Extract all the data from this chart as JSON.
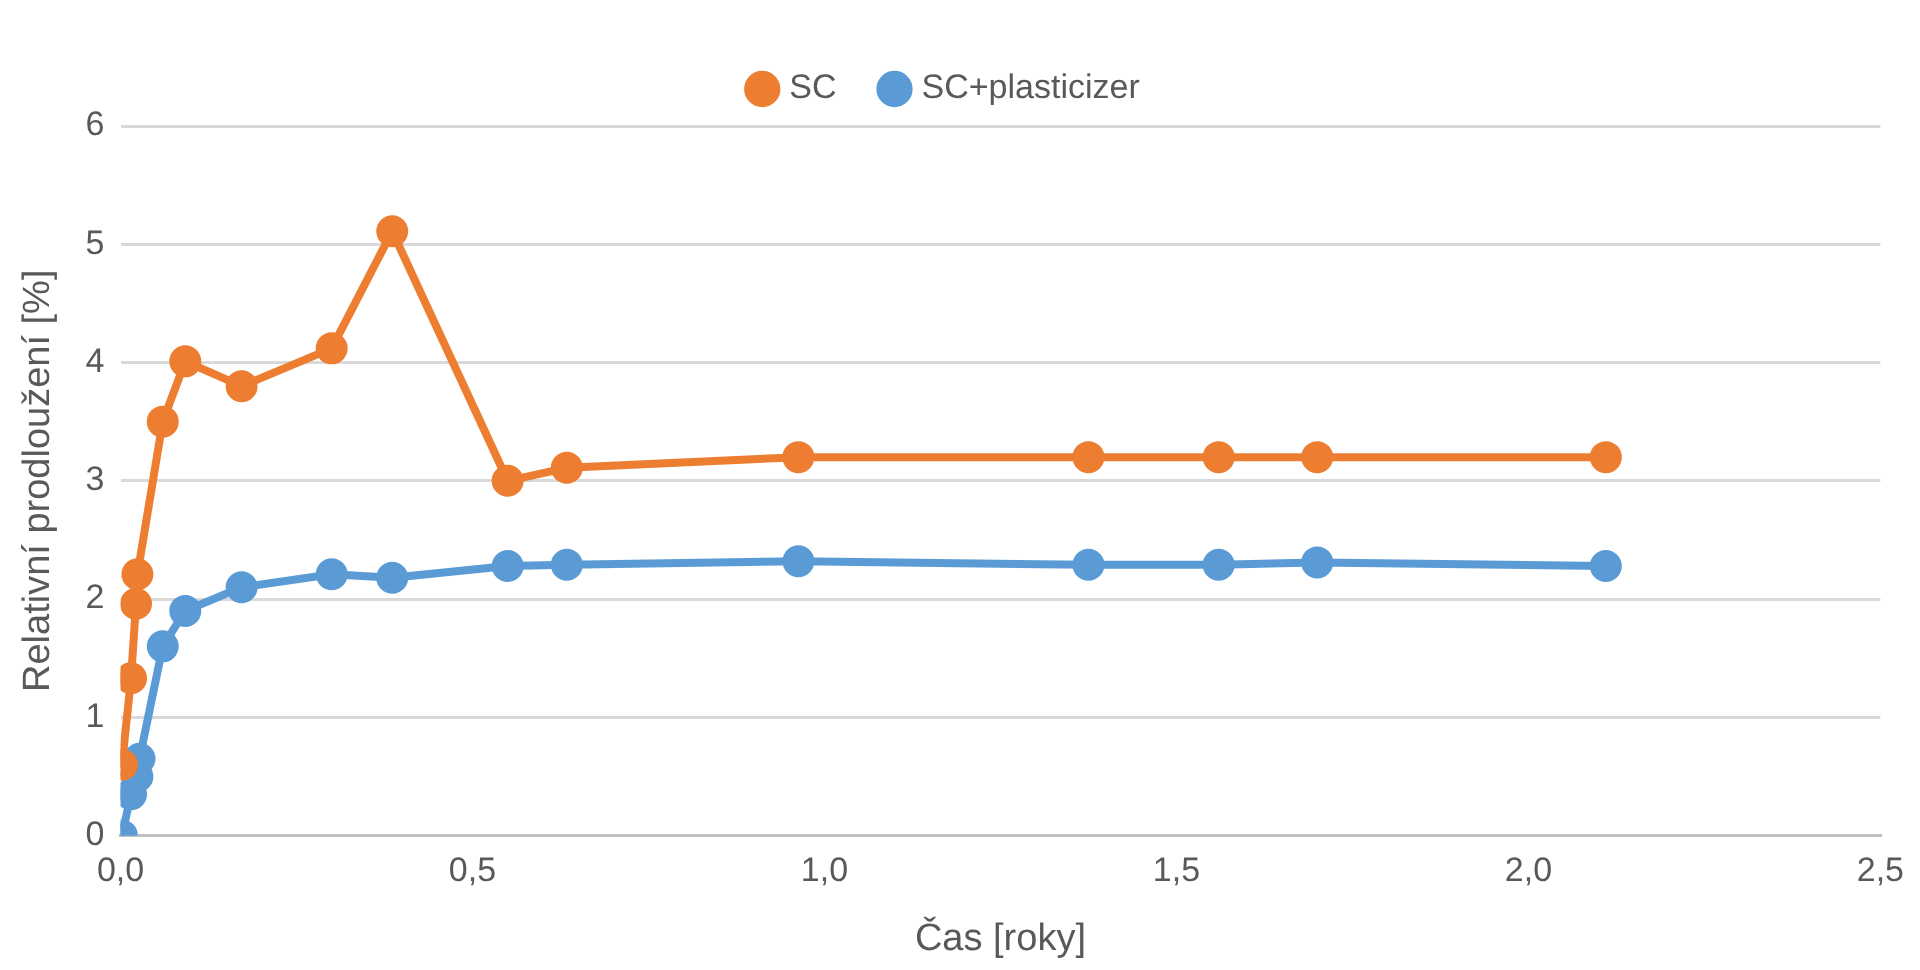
{
  "chart_data": {
    "type": "line",
    "xlabel": "Čas [roky]",
    "ylabel": "Relativní prodloužení [%]",
    "xlim": [
      0,
      2.5
    ],
    "xticks": [
      {
        "value": 0,
        "label": "0,0"
      },
      {
        "value": 0.5,
        "label": "0,5"
      },
      {
        "value": 1,
        "label": "1,0"
      },
      {
        "value": 1.5,
        "label": "1,5"
      },
      {
        "value": 2,
        "label": "2,0"
      },
      {
        "value": 2.5,
        "label": "2,5"
      }
    ],
    "ylim": [
      0,
      6
    ],
    "yticks": [
      0,
      1,
      2,
      3,
      4,
      5,
      6
    ],
    "grid": "y",
    "legend": "top",
    "marker": "circle",
    "line_style": "solid",
    "series": [
      {
        "name": "SC+plasticizer",
        "color": "#5b9bd5",
        "x": [
          0.002,
          0.015,
          0.024,
          0.027,
          0.06,
          0.092,
          0.172,
          0.3,
          0.386,
          0.55,
          0.634,
          0.963,
          1.375,
          1.56,
          1.7,
          2.11
        ],
        "values": [
          0,
          0.35,
          0.5,
          0.65,
          1.6,
          1.9,
          2.1,
          2.21,
          2.18,
          2.28,
          2.29,
          2.32,
          2.29,
          2.29,
          2.31,
          2.28
        ]
      },
      {
        "name": "SC",
        "color": "#ed7d31",
        "x": [
          0.002,
          0.015,
          0.022,
          0.024,
          0.06,
          0.092,
          0.172,
          0.3,
          0.386,
          0.55,
          0.634,
          0.963,
          1.375,
          1.56,
          1.7,
          2.11
        ],
        "values": [
          0.6,
          1.33,
          1.96,
          2.21,
          3.5,
          4.01,
          3.8,
          4.12,
          5.11,
          3.0,
          3.11,
          3.2,
          3.2,
          3.2,
          3.2,
          3.2
        ]
      }
    ]
  }
}
